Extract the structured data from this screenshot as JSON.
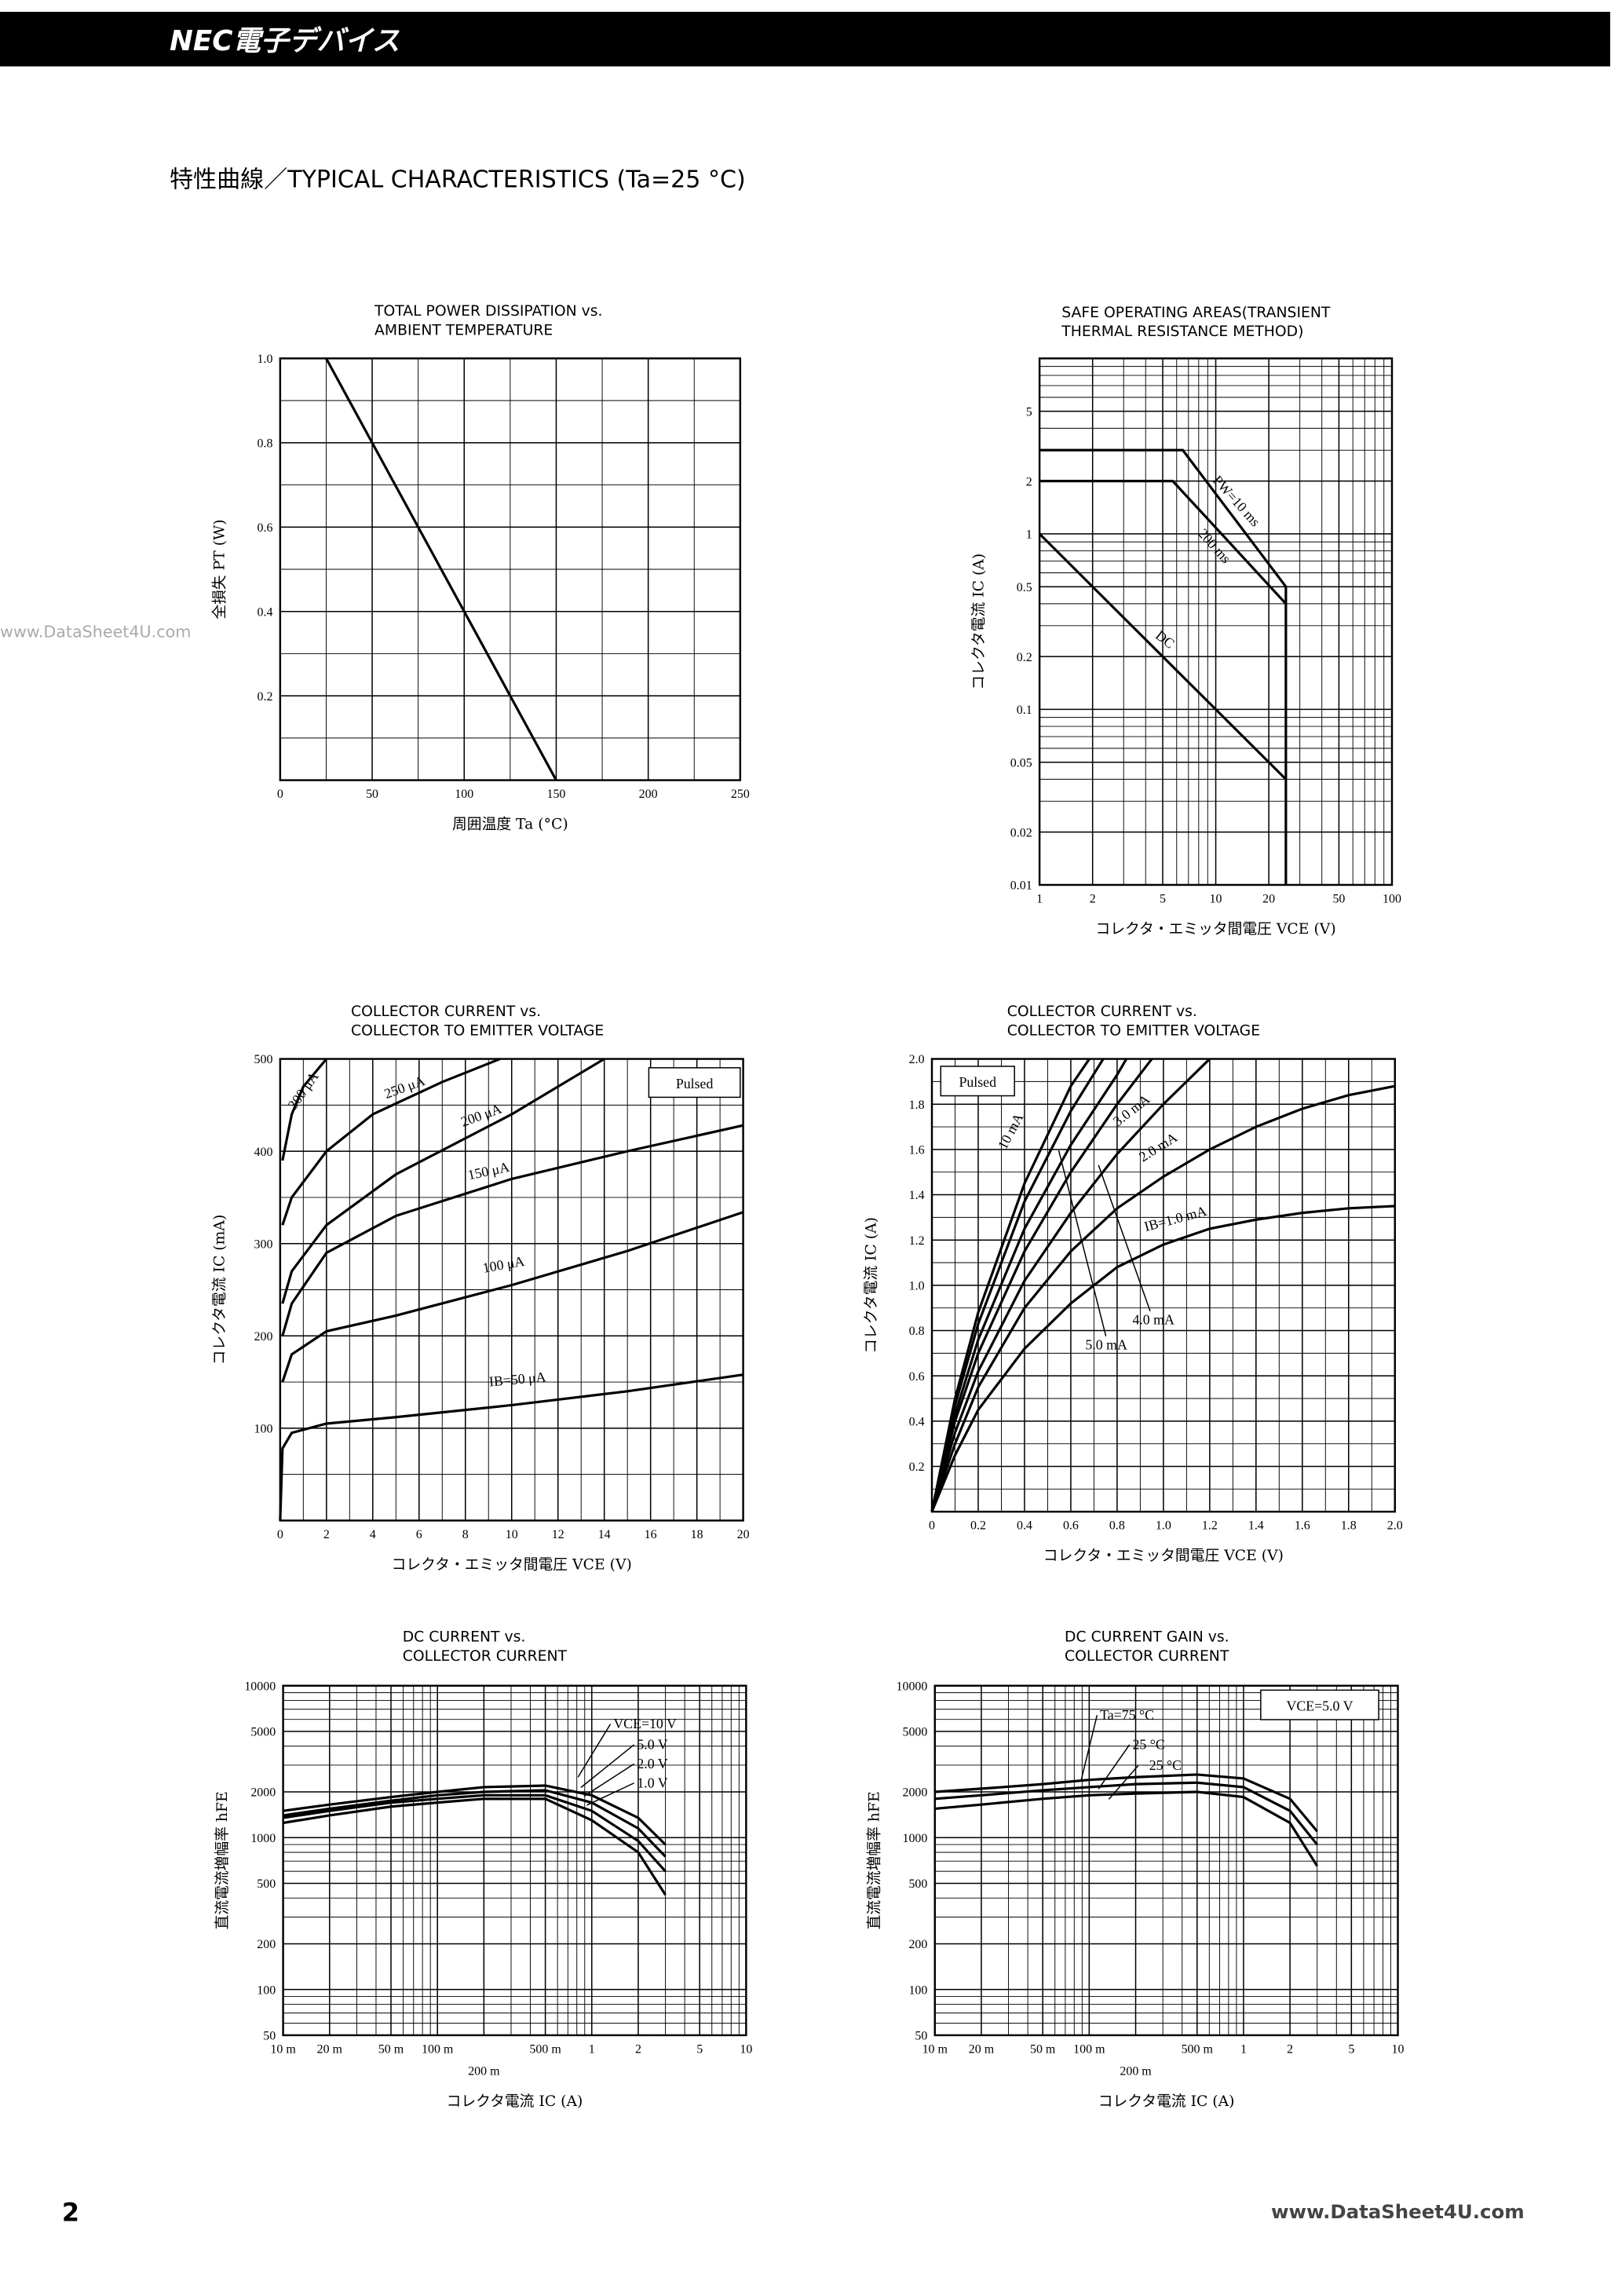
{
  "header": "NEC電子デバイス",
  "section_title": "特性曲線／TYPICAL CHARACTERISTICS (Ta=25 °C)",
  "watermark": "www.DataSheet4U.com",
  "page_number": "2",
  "footer": "www.DataSheet4U.com",
  "chart_data": [
    {
      "type": "line",
      "title": [
        "TOTAL POWER DISSIPATION vs.",
        "AMBIENT TEMPERATURE"
      ],
      "x_label": "周囲温度  Ta (°C)",
      "y_label": "全損失  PT (W)",
      "xlim": [
        0,
        250
      ],
      "ylim": [
        0,
        1
      ],
      "xticks": [
        0,
        50,
        100,
        150,
        200,
        250
      ],
      "yticks": [
        0.2,
        0.4,
        0.6,
        0.8,
        {
          "value": 1,
          "label": "1.0"
        }
      ],
      "grid": true,
      "series": [
        {
          "color": "#000000",
          "x": [
            25,
            150
          ],
          "values": [
            1,
            0
          ]
        }
      ]
    },
    {
      "type": "line",
      "title": [
        "SAFE OPERATING AREAS(TRANSIENT",
        "THERMAL RESISTANCE METHOD)"
      ],
      "x_label": "コレクタ・エミッタ間電圧  VCE (V)",
      "y_label": "コレクタ電流  IC (A)",
      "xscale": "log",
      "yscale": "log",
      "xlim": [
        1,
        100
      ],
      "ylim": [
        0.01,
        10
      ],
      "xticks": [
        1,
        2,
        5,
        10,
        20,
        50,
        100
      ],
      "yticks": [
        0.01,
        0.02,
        0.05,
        0.1,
        0.2,
        0.5,
        1,
        2,
        5
      ],
      "grid": true,
      "series": [
        {
          "name": "PW=10 ms",
          "color": "#000000",
          "x": [
            1,
            6.5,
            25,
            25
          ],
          "values": [
            3,
            3,
            0.5,
            0.01
          ]
        },
        {
          "name": "200 ms",
          "color": "#000000",
          "x": [
            1,
            5.7,
            25
          ],
          "values": [
            2,
            2,
            0.4
          ]
        },
        {
          "name": "DC",
          "color": "#000000",
          "x": [
            1,
            25
          ],
          "values": [
            1,
            0.04
          ]
        }
      ]
    },
    {
      "type": "line",
      "title": [
        "COLLECTOR CURRENT vs.",
        "COLLECTOR TO EMITTER VOLTAGE"
      ],
      "x_label": "コレクタ・エミッタ間電圧  VCE (V)",
      "y_label": "コレクタ電流  IC (mA)",
      "xlim": [
        0,
        20
      ],
      "ylim": [
        0,
        500
      ],
      "xticks": [
        0,
        2,
        4,
        6,
        8,
        10,
        12,
        14,
        16,
        18,
        20
      ],
      "yticks": [
        100,
        200,
        300,
        400,
        500
      ],
      "grid": true,
      "annotations": [
        "Pulsed"
      ],
      "series": [
        {
          "name": "300 μA",
          "color": "#000000",
          "x": [
            0.1,
            0.5,
            1,
            2
          ],
          "values": [
            390,
            440,
            470,
            500
          ]
        },
        {
          "name": "250 μA",
          "color": "#000000",
          "x": [
            0.1,
            0.5,
            2,
            4,
            7,
            9.5
          ],
          "values": [
            320,
            350,
            400,
            440,
            475,
            500
          ]
        },
        {
          "name": "200 μA",
          "color": "#000000",
          "x": [
            0.1,
            0.5,
            2,
            5,
            10,
            14
          ],
          "values": [
            235,
            270,
            320,
            375,
            440,
            500
          ]
        },
        {
          "name": "150 μA",
          "color": "#000000",
          "x": [
            0.1,
            0.5,
            2,
            5,
            10,
            15,
            20
          ],
          "values": [
            200,
            235,
            290,
            330,
            370,
            400,
            428
          ]
        },
        {
          "name": "100 μA",
          "color": "#000000",
          "x": [
            0.1,
            0.5,
            2,
            5,
            10,
            15,
            20
          ],
          "values": [
            150,
            180,
            205,
            222,
            255,
            292,
            334
          ]
        },
        {
          "name": "IB=50 μA",
          "color": "#000000",
          "x": [
            0,
            0.1,
            0.5,
            2,
            5,
            10,
            15,
            20
          ],
          "values": [
            0,
            78,
            95,
            105,
            112,
            125,
            140,
            158
          ]
        }
      ]
    },
    {
      "type": "line",
      "title": [
        "COLLECTOR CURRENT vs.",
        "COLLECTOR TO EMITTER VOLTAGE"
      ],
      "x_label": "コレクタ・エミッタ間電圧  VCE (V)",
      "y_label": "コレクタ電流  IC (A)",
      "xlim": [
        0,
        2
      ],
      "ylim": [
        0,
        2
      ],
      "xticks": [
        0,
        0.2,
        0.4,
        0.6,
        0.8,
        {
          "value": 1,
          "label": "1.0"
        },
        1.2,
        1.4,
        1.6,
        1.8,
        {
          "value": 2,
          "label": "2.0"
        }
      ],
      "yticks": [
        0.2,
        0.4,
        0.6,
        0.8,
        {
          "value": 1,
          "label": "1.0"
        },
        1.2,
        1.4,
        1.6,
        1.8,
        {
          "value": 2,
          "label": "2.0"
        }
      ],
      "grid": true,
      "annotations": [
        "Pulsed"
      ],
      "series": [
        {
          "name": "10 mA",
          "color": "#000000",
          "x": [
            0,
            0.1,
            0.2,
            0.4,
            0.6,
            0.68
          ],
          "values": [
            0,
            0.5,
            0.88,
            1.45,
            1.88,
            2
          ]
        },
        {
          "color": "#000000",
          "x": [
            0,
            0.1,
            0.2,
            0.4,
            0.6,
            0.74
          ],
          "values": [
            0,
            0.47,
            0.83,
            1.37,
            1.77,
            2
          ]
        },
        {
          "name": "5.0 mA",
          "color": "#000000",
          "x": [
            0,
            0.1,
            0.2,
            0.4,
            0.6,
            0.8,
            0.84
          ],
          "values": [
            0,
            0.43,
            0.76,
            1.25,
            1.62,
            1.93,
            2
          ]
        },
        {
          "name": "4.0 mA",
          "color": "#000000",
          "x": [
            0,
            0.1,
            0.2,
            0.4,
            0.6,
            0.8,
            0.95
          ],
          "values": [
            0,
            0.4,
            0.7,
            1.15,
            1.5,
            1.8,
            2
          ]
        },
        {
          "name": "3.0 mA",
          "color": "#000000",
          "x": [
            0,
            0.1,
            0.2,
            0.4,
            0.6,
            0.8,
            1,
            1.2
          ],
          "values": [
            0,
            0.35,
            0.62,
            1.02,
            1.32,
            1.58,
            1.8,
            2
          ]
        },
        {
          "name": "2.0 mA",
          "color": "#000000",
          "x": [
            0,
            0.1,
            0.2,
            0.4,
            0.6,
            0.8,
            1,
            1.2,
            1.4,
            1.6,
            1.8,
            2
          ],
          "values": [
            0,
            0.3,
            0.55,
            0.9,
            1.15,
            1.34,
            1.48,
            1.6,
            1.7,
            1.78,
            1.84,
            1.88
          ]
        },
        {
          "name": "IB=1.0 mA",
          "color": "#000000",
          "x": [
            0,
            0.1,
            0.2,
            0.4,
            0.6,
            0.8,
            1,
            1.2,
            1.4,
            1.6,
            1.8,
            2
          ],
          "values": [
            0,
            0.25,
            0.45,
            0.72,
            0.92,
            1.08,
            1.18,
            1.25,
            1.29,
            1.32,
            1.34,
            1.35
          ]
        }
      ]
    },
    {
      "type": "line",
      "title": [
        "DC CURRENT vs.",
        "COLLECTOR CURRENT"
      ],
      "x_label": "コレクタ電流  IC (A)",
      "y_label": "直流電流増幅率  hFE",
      "xscale": "log",
      "yscale": "log",
      "xlim": [
        0.01,
        10
      ],
      "ylim": [
        50,
        10000
      ],
      "xticks": [
        {
          "value": 0.01,
          "label": "10 m"
        },
        {
          "value": 0.02,
          "label": "20 m"
        },
        {
          "value": 0.05,
          "label": "50 m"
        },
        {
          "value": 0.1,
          "label": "100 m"
        },
        {
          "value": 0.2,
          "label": "200 m"
        },
        {
          "value": 0.5,
          "label": "500 m"
        },
        1,
        2,
        5,
        10
      ],
      "yticks": [
        50,
        100,
        200,
        500,
        1000,
        2000,
        5000,
        10000
      ],
      "grid": true,
      "series": [
        {
          "name": "VCE=10 V",
          "color": "#000000",
          "x": [
            0.01,
            0.02,
            0.05,
            0.1,
            0.2,
            0.5,
            1,
            2,
            3
          ],
          "values": [
            1500,
            1650,
            1850,
            2000,
            2150,
            2200,
            1900,
            1350,
            900
          ]
        },
        {
          "name": "5.0 V",
          "color": "#000000",
          "x": [
            0.01,
            0.02,
            0.05,
            0.1,
            0.2,
            0.5,
            1,
            2,
            3
          ],
          "values": [
            1400,
            1550,
            1750,
            1900,
            2000,
            2050,
            1700,
            1150,
            750
          ]
        },
        {
          "name": "2.0 V",
          "color": "#000000",
          "x": [
            0.01,
            0.02,
            0.05,
            0.1,
            0.2,
            0.5,
            1,
            2,
            3
          ],
          "values": [
            1350,
            1500,
            1700,
            1800,
            1900,
            1900,
            1500,
            950,
            600
          ]
        },
        {
          "name": "1.0 V",
          "color": "#000000",
          "x": [
            0.01,
            0.02,
            0.05,
            0.1,
            0.2,
            0.5,
            1,
            2,
            3
          ],
          "values": [
            1250,
            1400,
            1600,
            1700,
            1800,
            1800,
            1300,
            800,
            420
          ]
        }
      ]
    },
    {
      "type": "line",
      "title": [
        "DC CURRENT GAIN vs.",
        "COLLECTOR CURRENT"
      ],
      "x_label": "コレクタ電流  IC (A)",
      "y_label": "直流電流増幅率  hFE",
      "xscale": "log",
      "yscale": "log",
      "xlim": [
        0.01,
        10
      ],
      "ylim": [
        50,
        10000
      ],
      "xticks": [
        {
          "value": 0.01,
          "label": "10 m"
        },
        {
          "value": 0.02,
          "label": "20 m"
        },
        {
          "value": 0.05,
          "label": "50 m"
        },
        {
          "value": 0.1,
          "label": "100 m"
        },
        {
          "value": 0.2,
          "label": "200 m"
        },
        {
          "value": 0.5,
          "label": "500 m"
        },
        1,
        2,
        5,
        10
      ],
      "yticks": [
        50,
        100,
        200,
        500,
        1000,
        2000,
        5000,
        10000
      ],
      "grid": true,
      "annotations": [
        "VCE=5.0 V"
      ],
      "series": [
        {
          "name": "Ta=75 °C",
          "color": "#000000",
          "x": [
            0.01,
            0.02,
            0.05,
            0.1,
            0.2,
            0.5,
            1,
            2,
            3
          ],
          "values": [
            2000,
            2100,
            2250,
            2400,
            2500,
            2600,
            2450,
            1800,
            1100
          ]
        },
        {
          "name": "25 °C",
          "color": "#000000",
          "x": [
            0.01,
            0.02,
            0.05,
            0.1,
            0.2,
            0.5,
            1,
            2,
            3
          ],
          "values": [
            1800,
            1900,
            2050,
            2150,
            2250,
            2300,
            2150,
            1500,
            900
          ]
        },
        {
          "name": "−25 °C",
          "color": "#000000",
          "x": [
            0.01,
            0.02,
            0.05,
            0.1,
            0.2,
            0.5,
            1,
            2,
            3
          ],
          "values": [
            1550,
            1650,
            1800,
            1900,
            1950,
            2000,
            1850,
            1250,
            650
          ]
        }
      ]
    }
  ]
}
